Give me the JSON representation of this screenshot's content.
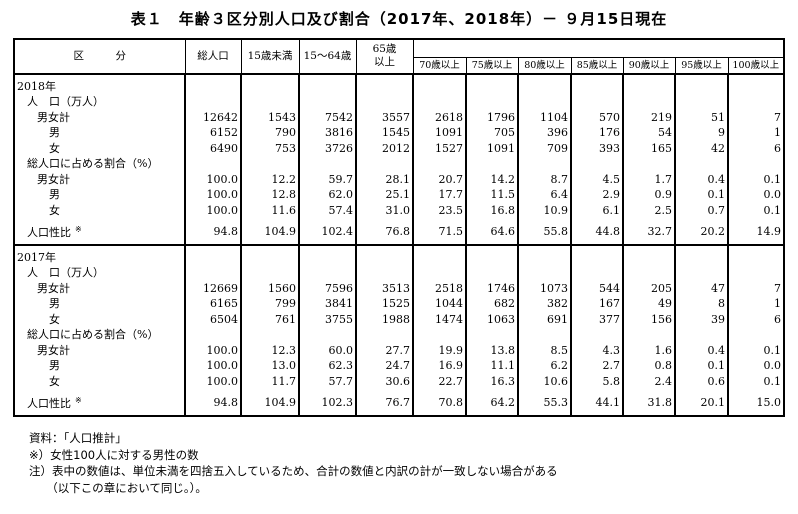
{
  "title": "表１　年齢３区分別人口及び割合（2017年、2018年）－ ９月15日現在",
  "headers": {
    "category": "区　　　分",
    "total": "総人口",
    "under15": "15歳未満",
    "age15_64": "15～64歳",
    "over65": "65歳以上",
    "sub": [
      "70歳以上",
      "75歳以上",
      "80歳以上",
      "85歳以上",
      "90歳以上",
      "95歳以上",
      "100歳以上"
    ]
  },
  "sections": [
    {
      "year": "2018年",
      "pop_label": "人　口（万人）",
      "pct_label": "総人口に占める割合（%）",
      "sex_ratio_label": "人口性比",
      "sex_ratio_mark": "※",
      "population": [
        {
          "label": "男女計",
          "values": [
            "12642",
            "1543",
            "7542",
            "3557",
            "2618",
            "1796",
            "1104",
            "570",
            "219",
            "51",
            "7"
          ]
        },
        {
          "label": "男",
          "values": [
            "6152",
            "790",
            "3816",
            "1545",
            "1091",
            "705",
            "396",
            "176",
            "54",
            "9",
            "1"
          ]
        },
        {
          "label": "女",
          "values": [
            "6490",
            "753",
            "3726",
            "2012",
            "1527",
            "1091",
            "709",
            "393",
            "165",
            "42",
            "6"
          ]
        }
      ],
      "percent": [
        {
          "label": "男女計",
          "values": [
            "100.0",
            "12.2",
            "59.7",
            "28.1",
            "20.7",
            "14.2",
            "8.7",
            "4.5",
            "1.7",
            "0.4",
            "0.1"
          ]
        },
        {
          "label": "男",
          "values": [
            "100.0",
            "12.8",
            "62.0",
            "25.1",
            "17.7",
            "11.5",
            "6.4",
            "2.9",
            "0.9",
            "0.1",
            "0.0"
          ]
        },
        {
          "label": "女",
          "values": [
            "100.0",
            "11.6",
            "57.4",
            "31.0",
            "23.5",
            "16.8",
            "10.9",
            "6.1",
            "2.5",
            "0.7",
            "0.1"
          ]
        }
      ],
      "sex_ratio": [
        "94.8",
        "104.9",
        "102.4",
        "76.8",
        "71.5",
        "64.6",
        "55.8",
        "44.8",
        "32.7",
        "20.2",
        "14.9"
      ]
    },
    {
      "year": "2017年",
      "pop_label": "人　口（万人）",
      "pct_label": "総人口に占める割合（%）",
      "sex_ratio_label": "人口性比",
      "sex_ratio_mark": "※",
      "population": [
        {
          "label": "男女計",
          "values": [
            "12669",
            "1560",
            "7596",
            "3513",
            "2518",
            "1746",
            "1073",
            "544",
            "205",
            "47",
            "7"
          ]
        },
        {
          "label": "男",
          "values": [
            "6165",
            "799",
            "3841",
            "1525",
            "1044",
            "682",
            "382",
            "167",
            "49",
            "8",
            "1"
          ]
        },
        {
          "label": "女",
          "values": [
            "6504",
            "761",
            "3755",
            "1988",
            "1474",
            "1063",
            "691",
            "377",
            "156",
            "39",
            "6"
          ]
        }
      ],
      "percent": [
        {
          "label": "男女計",
          "values": [
            "100.0",
            "12.3",
            "60.0",
            "27.7",
            "19.9",
            "13.8",
            "8.5",
            "4.3",
            "1.6",
            "0.4",
            "0.1"
          ]
        },
        {
          "label": "男",
          "values": [
            "100.0",
            "13.0",
            "62.3",
            "24.7",
            "16.9",
            "11.1",
            "6.2",
            "2.7",
            "0.8",
            "0.1",
            "0.0"
          ]
        },
        {
          "label": "女",
          "values": [
            "100.0",
            "11.7",
            "57.7",
            "30.6",
            "22.7",
            "16.3",
            "10.6",
            "5.8",
            "2.4",
            "0.6",
            "0.1"
          ]
        }
      ],
      "sex_ratio": [
        "94.8",
        "104.9",
        "102.3",
        "76.7",
        "70.8",
        "64.2",
        "55.3",
        "44.1",
        "31.8",
        "20.1",
        "15.0"
      ]
    }
  ],
  "notes": [
    "資料：「人口推計」",
    "※）女性100人に対する男性の数",
    "注）表中の数値は、単位未満を四捨五入しているため、合計の数値と内訳の計が一致しない場合がある",
    "　　（以下この章において同じ。）。"
  ]
}
